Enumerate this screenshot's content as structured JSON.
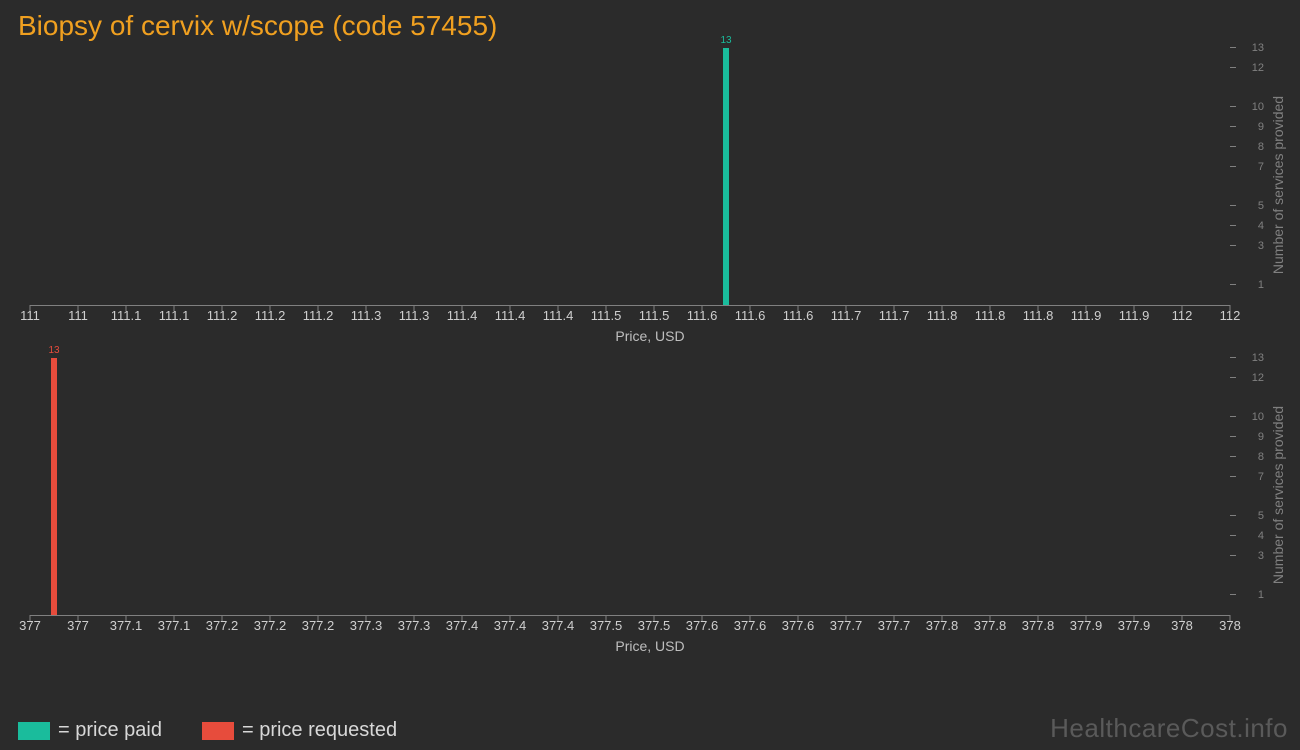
{
  "title": "Biopsy of cervix w/scope (code 57455)",
  "background_color": "#2b2b2b",
  "title_color": "#f0a020",
  "title_fontsize": 28,
  "axis_color": "#808080",
  "tick_label_color": "#cfcfcf",
  "xlabel_color": "#bfbfbf",
  "ylabel_color": "#808080",
  "watermark": "HealthcareCost.info",
  "watermark_color": "#5a5a5a",
  "legend": [
    {
      "label": "= price paid",
      "color": "#1abc9c"
    },
    {
      "label": "= price requested",
      "color": "#e74c3c"
    }
  ],
  "charts": [
    {
      "type": "bar",
      "bar": {
        "x": 111.58,
        "value": 13,
        "color": "#1abc9c",
        "label": "13",
        "width": 6
      },
      "xlim": [
        111,
        112
      ],
      "xticks": [
        "111",
        "111",
        "111.1",
        "111.1",
        "111.2",
        "111.2",
        "111.2",
        "111.3",
        "111.3",
        "111.4",
        "111.4",
        "111.4",
        "111.5",
        "111.5",
        "111.6",
        "111.6",
        "111.6",
        "111.7",
        "111.7",
        "111.8",
        "111.8",
        "111.8",
        "111.9",
        "111.9",
        "112",
        "112"
      ],
      "ylim": [
        0,
        13
      ],
      "yticks": [
        1,
        3,
        4,
        5,
        7,
        8,
        9,
        10,
        12,
        13
      ],
      "xlabel": "Price, USD",
      "ylabel": "Number of services provided"
    },
    {
      "type": "bar",
      "bar": {
        "x": 377.02,
        "value": 13,
        "color": "#e74c3c",
        "label": "13",
        "width": 6
      },
      "xlim": [
        377,
        378
      ],
      "xticks": [
        "377",
        "377",
        "377.1",
        "377.1",
        "377.2",
        "377.2",
        "377.2",
        "377.3",
        "377.3",
        "377.4",
        "377.4",
        "377.4",
        "377.5",
        "377.5",
        "377.6",
        "377.6",
        "377.6",
        "377.7",
        "377.7",
        "377.8",
        "377.8",
        "377.8",
        "377.9",
        "377.9",
        "378",
        "378"
      ],
      "ylim": [
        0,
        13
      ],
      "yticks": [
        1,
        3,
        4,
        5,
        7,
        8,
        9,
        10,
        12,
        13
      ],
      "xlabel": "Price, USD",
      "ylabel": "Number of services provided"
    }
  ]
}
